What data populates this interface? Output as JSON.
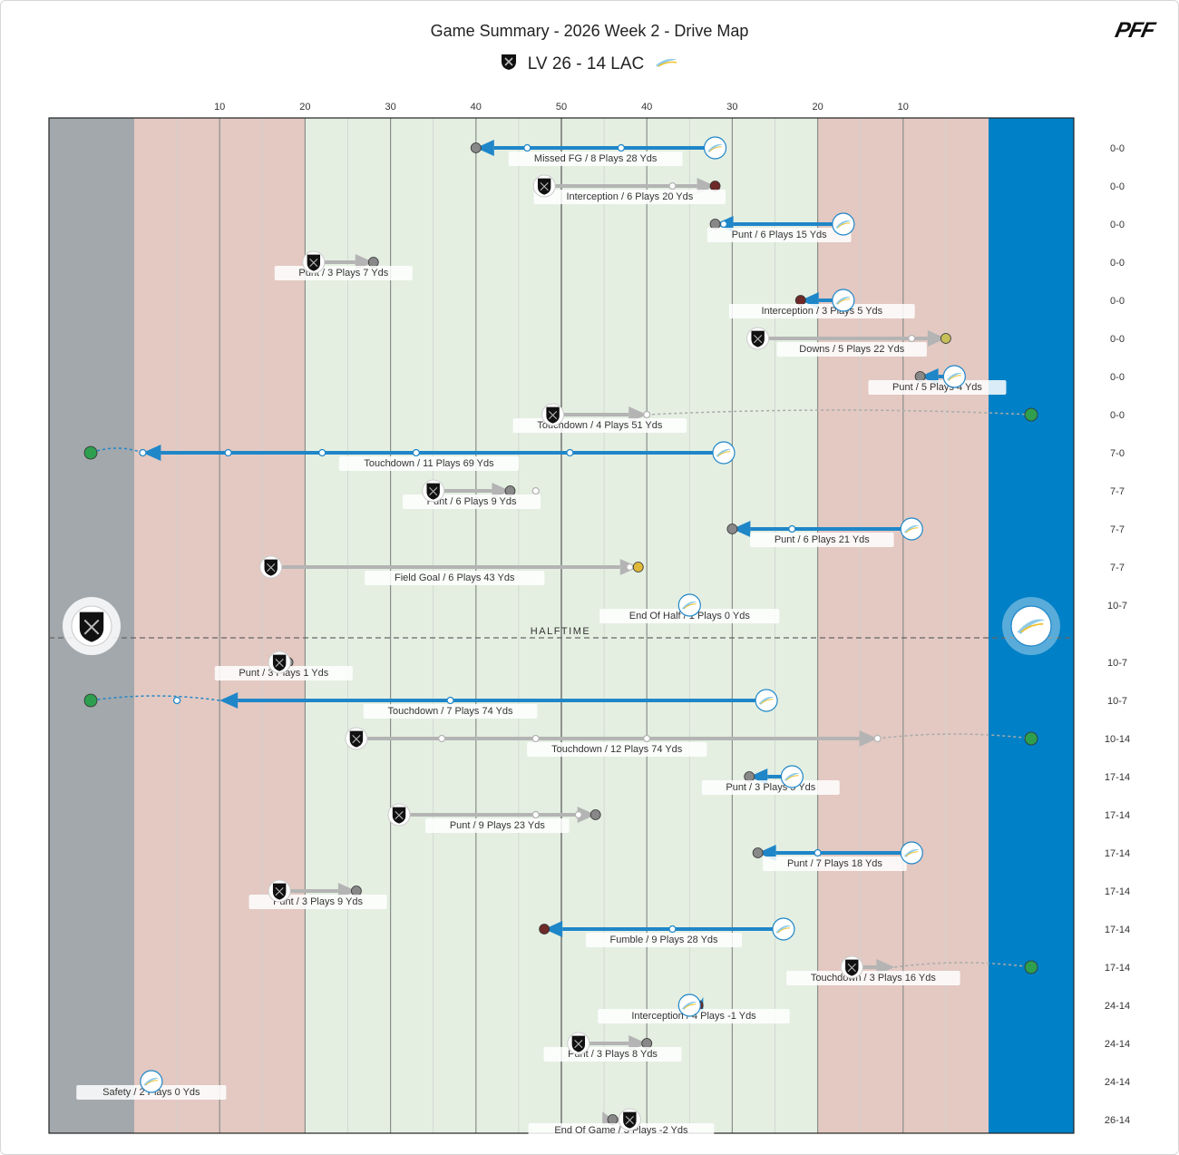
{
  "header": {
    "title": "Game Summary - 2026 Week 2 - Drive Map",
    "away_abbr": "LV",
    "away_score": "26",
    "home_abbr": "LAC",
    "home_score": "14",
    "score_line": "LV 26 - 14 LAC",
    "brand": "PFF"
  },
  "colors": {
    "lv": "#a5acaf",
    "lac": "#0080c6",
    "lac_arrow": "#1f86c8",
    "lv_arrow": "#b4b4b4",
    "end_zone_lv": "#a3a8ac",
    "end_zone_lac": "#0080c6",
    "zone_red": "#e3c9c2",
    "zone_green": "#e4efe2",
    "score_dot": "#2e9e4f",
    "turnover_dot": "#6e2a28",
    "fg_dot": "#e0b93b",
    "downs_dot": "#c7bf5a",
    "punt_dot": "#888888"
  },
  "chart_data": {
    "type": "drive_map",
    "yard_ticks": [
      "10",
      "20",
      "30",
      "40",
      "50",
      "40",
      "30",
      "20",
      "10"
    ],
    "halftime_label": "HALFTIME",
    "first_half": [
      {
        "team": "LAC",
        "start": 68,
        "end": 40,
        "mids": [
          46,
          57
        ],
        "result": "Missed FG",
        "label": "Missed FG / 8 Plays 28 Yds",
        "score": "0-0",
        "end_type": "miss"
      },
      {
        "team": "LV",
        "start": 48,
        "end": 68,
        "mids": [
          63
        ],
        "result": "Interception",
        "label": "Interception / 6 Plays 20 Yds",
        "score": "0-0",
        "end_type": "turnover"
      },
      {
        "team": "LAC",
        "start": 83,
        "end": 68,
        "mids": [
          69
        ],
        "result": "Punt",
        "label": "Punt / 6 Plays 15 Yds",
        "score": "0-0",
        "end_type": "punt"
      },
      {
        "team": "LV",
        "start": 21,
        "end": 28,
        "mids": [],
        "result": "Punt",
        "label": "Punt / 3 Plays 7 Yds",
        "score": "0-0",
        "end_type": "punt"
      },
      {
        "team": "LAC",
        "start": 83,
        "end": 78,
        "mids": [],
        "result": "Interception",
        "label": "Interception / 3 Plays 5 Yds",
        "score": "0-0",
        "end_type": "turnover"
      },
      {
        "team": "LV",
        "start": 73,
        "end": 95,
        "mids": [
          91
        ],
        "result": "Downs",
        "label": "Downs / 5 Plays 22 Yds",
        "score": "0-0",
        "end_type": "downs"
      },
      {
        "team": "LAC",
        "start": 96,
        "end": 92,
        "mids": [],
        "result": "Punt",
        "label": "Punt / 5 Plays 4 Yds",
        "score": "0-0",
        "end_type": "punt"
      },
      {
        "team": "LV",
        "start": 49,
        "end": 100,
        "arrow_to": 60,
        "mids": [
          60
        ],
        "result": "Touchdown",
        "label": "Touchdown / 4 Plays 51 Yds",
        "score": "0-0",
        "end_type": "td"
      },
      {
        "team": "LAC",
        "start": 69,
        "end": 0,
        "arrow_to": 1,
        "mids": [
          51,
          33,
          22,
          11,
          1
        ],
        "result": "Touchdown",
        "label": "Touchdown / 11 Plays 69 Yds",
        "score": "7-0",
        "end_type": "td"
      },
      {
        "team": "LV",
        "start": 35,
        "end": 44,
        "mids": [
          47
        ],
        "result": "Punt",
        "label": "Punt / 6 Plays 9 Yds",
        "score": "7-7",
        "end_type": "punt"
      },
      {
        "team": "LAC",
        "start": 91,
        "end": 70,
        "mids": [
          77
        ],
        "result": "Punt",
        "label": "Punt / 6 Plays 21 Yds",
        "score": "7-7",
        "end_type": "punt"
      },
      {
        "team": "LV",
        "start": 16,
        "end": 59,
        "mids": [
          58
        ],
        "result": "Field Goal",
        "label": "Field Goal / 6 Plays 43 Yds",
        "score": "7-7",
        "end_type": "fg"
      },
      {
        "team": "LAC",
        "start": 65,
        "end": 65,
        "mids": [],
        "result": "End Of Half",
        "label": "End Of Half / 1 Plays 0 Yds",
        "score": "10-7",
        "end_type": "punt"
      }
    ],
    "second_half": [
      {
        "team": "LV",
        "start": 17,
        "end": 18,
        "mids": [],
        "result": "Punt",
        "label": "Punt / 3 Plays 1 Yds",
        "score": "10-7",
        "end_type": "punt"
      },
      {
        "team": "LAC",
        "start": 74,
        "end": 0,
        "arrow_to": 10,
        "mids": [
          37,
          5
        ],
        "result": "Touchdown",
        "label": "Touchdown / 7 Plays 74 Yds",
        "score": "10-7",
        "end_type": "td"
      },
      {
        "team": "LV",
        "start": 26,
        "end": 100,
        "arrow_to": 87,
        "mids": [
          36,
          47,
          60,
          87
        ],
        "result": "Touchdown",
        "label": "Touchdown / 12 Plays 74 Yds",
        "score": "10-14",
        "end_type": "td"
      },
      {
        "team": "LAC",
        "start": 77,
        "end": 72,
        "mids": [],
        "result": "Punt",
        "label": "Punt / 3 Plays 5 Yds",
        "score": "17-14",
        "end_type": "punt"
      },
      {
        "team": "LV",
        "start": 31,
        "end": 54,
        "mids": [
          47,
          52
        ],
        "result": "Punt",
        "label": "Punt / 9 Plays 23 Yds",
        "score": "17-14",
        "end_type": "punt"
      },
      {
        "team": "LAC",
        "start": 91,
        "end": 73,
        "mids": [
          80
        ],
        "result": "Punt",
        "label": "Punt / 7 Plays 18 Yds",
        "score": "17-14",
        "end_type": "punt"
      },
      {
        "team": "LV",
        "start": 17,
        "end": 26,
        "mids": [],
        "result": "Punt",
        "label": "Punt / 3 Plays 9 Yds",
        "score": "17-14",
        "end_type": "punt"
      },
      {
        "team": "LAC",
        "start": 76,
        "end": 48,
        "mids": [
          63
        ],
        "result": "Fumble",
        "label": "Fumble / 9 Plays 28 Yds",
        "score": "17-14",
        "end_type": "turnover"
      },
      {
        "team": "LV",
        "start": 84,
        "end": 100,
        "arrow_to": 89,
        "mids": [],
        "result": "Touchdown",
        "label": "Touchdown / 3 Plays 16 Yds",
        "score": "17-14",
        "end_type": "td"
      },
      {
        "team": "LAC",
        "start": 65,
        "end": 66,
        "mids": [],
        "result": "Interception",
        "label": "Interception / 4 Plays -1 Yds",
        "score": "24-14",
        "end_type": "turnover"
      },
      {
        "team": "LV",
        "start": 52,
        "end": 60,
        "mids": [],
        "result": "Punt",
        "label": "Punt / 3 Plays 8 Yds",
        "score": "24-14",
        "end_type": "punt"
      },
      {
        "team": "LAC",
        "start": 2,
        "end": 2,
        "mids": [],
        "result": "Safety",
        "label": "Safety / 2 Plays 0 Yds",
        "score": "24-14",
        "end_type": "turnover"
      },
      {
        "team": "LV",
        "start": 58,
        "end": 56,
        "mids": [],
        "result": "End Of Game",
        "label": "End Of Game / 3 Plays -2 Yds",
        "score": "26-14",
        "end_type": "punt"
      }
    ]
  }
}
